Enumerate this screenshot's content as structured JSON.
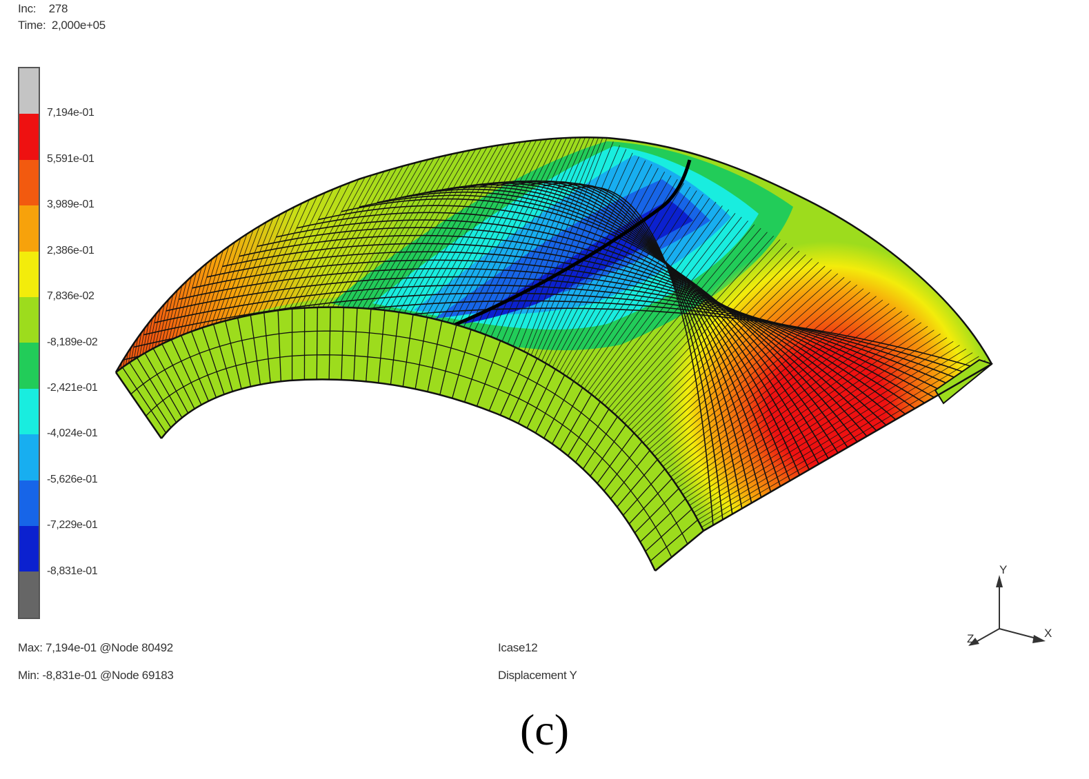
{
  "header": {
    "inc_label": "Inc:",
    "inc_value": "278",
    "time_label": "Time:",
    "time_value": "2,000e+05"
  },
  "legend": {
    "colors": [
      "#c4c4c4",
      "#ee1111",
      "#f25a0f",
      "#f7a20b",
      "#f3ec0b",
      "#9ddc1d",
      "#22cc59",
      "#19eddf",
      "#18aef0",
      "#1765e8",
      "#0b21cf",
      "#666666"
    ],
    "ticks": [
      "7,194e-01",
      "5,591e-01",
      "3,989e-01",
      "2,386e-01",
      "7,836e-02",
      "-8,189e-02",
      "-2,421e-01",
      "-4,024e-01",
      "-5,626e-01",
      "-7,229e-01",
      "-8,831e-01"
    ]
  },
  "footer": {
    "max_text": "Max: 7,194e-01 @Node 80492",
    "min_text": "Min: -8,831e-01 @Node 69183",
    "case_text": "Icase12",
    "quantity_text": "Displacement Y"
  },
  "triad": {
    "x": "X",
    "y": "Y",
    "z": "Z"
  },
  "caption": "(c)"
}
